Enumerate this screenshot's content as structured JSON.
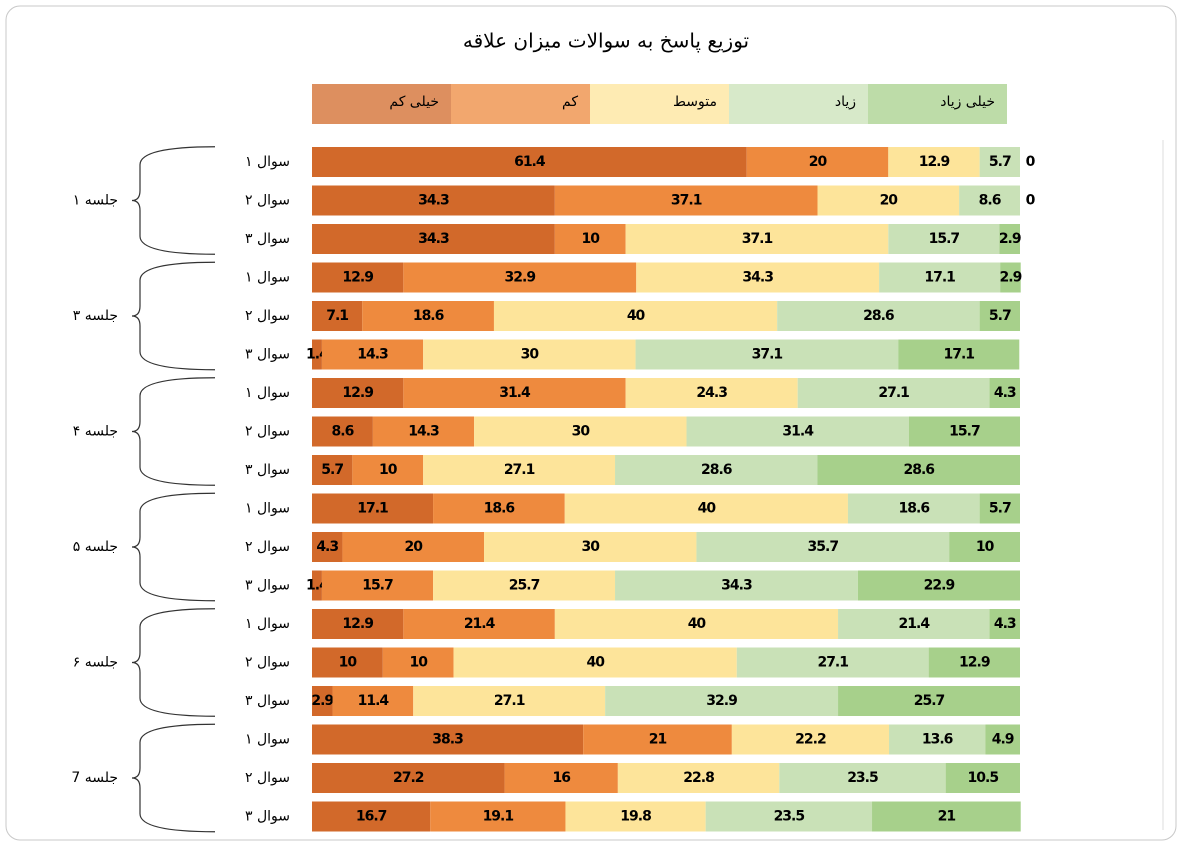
{
  "chart_data": {
    "type": "stacked-bar",
    "orientation": "horizontal",
    "title": "توزیع پاسخ به سوالات میزان علاقه",
    "xlim": [
      0,
      100
    ],
    "groups": [
      {
        "label": "جلسه ۱",
        "categories": [
          "سوال ۱",
          "سوال ۲",
          "سوال ۳"
        ]
      },
      {
        "label": "جلسه ۳",
        "categories": [
          "سوال ۱",
          "سوال ۲",
          "سوال ۳"
        ]
      },
      {
        "label": "جلسه ۴",
        "categories": [
          "سوال ۱",
          "سوال ۲",
          "سوال ۳"
        ]
      },
      {
        "label": "جلسه ۵",
        "categories": [
          "سوال ۱",
          "سوال ۲",
          "سوال ۳"
        ]
      },
      {
        "label": "جلسه ۶",
        "categories": [
          "سوال ۱",
          "سوال ۲",
          "سوال ۳"
        ]
      },
      {
        "label": "جلسه 7",
        "categories": [
          "سوال ۱",
          "سوال ۲",
          "سوال ۳"
        ]
      }
    ],
    "series": [
      {
        "name": "خیلی کم",
        "color": "#d2692a",
        "values": [
          61.4,
          34.3,
          34.3,
          12.9,
          7.1,
          1.4,
          12.9,
          8.6,
          5.7,
          17.1,
          4.3,
          1.4,
          12.9,
          10,
          2.9,
          38.3,
          27.2,
          16.7
        ]
      },
      {
        "name": "کم",
        "color": "#ee8a3e",
        "values": [
          20,
          37.1,
          10,
          32.9,
          18.6,
          14.3,
          31.4,
          14.3,
          10,
          18.6,
          20,
          15.7,
          21.4,
          10,
          11.4,
          21,
          16,
          19.1
        ]
      },
      {
        "name": "متوسط",
        "color": "#fde49a",
        "values": [
          12.9,
          20,
          37.1,
          34.3,
          40,
          30,
          24.3,
          30,
          27.1,
          40,
          30,
          25.7,
          40,
          40,
          27.1,
          22.2,
          22.8,
          19.8
        ]
      },
      {
        "name": "زیاد",
        "color": "#c9e1b7",
        "values": [
          5.7,
          8.6,
          15.7,
          17.1,
          28.6,
          37.1,
          27.1,
          31.4,
          28.6,
          18.6,
          35.7,
          34.3,
          21.4,
          27.1,
          32.9,
          13.6,
          23.5,
          23.5
        ]
      },
      {
        "name": "خیلی زیاد",
        "color": "#a7d08b",
        "values": [
          0,
          0,
          2.9,
          2.9,
          5.7,
          17.1,
          4.3,
          15.7,
          28.6,
          5.7,
          10,
          22.9,
          4.3,
          12.9,
          25.7,
          4.9,
          10.5,
          21
        ]
      }
    ]
  }
}
